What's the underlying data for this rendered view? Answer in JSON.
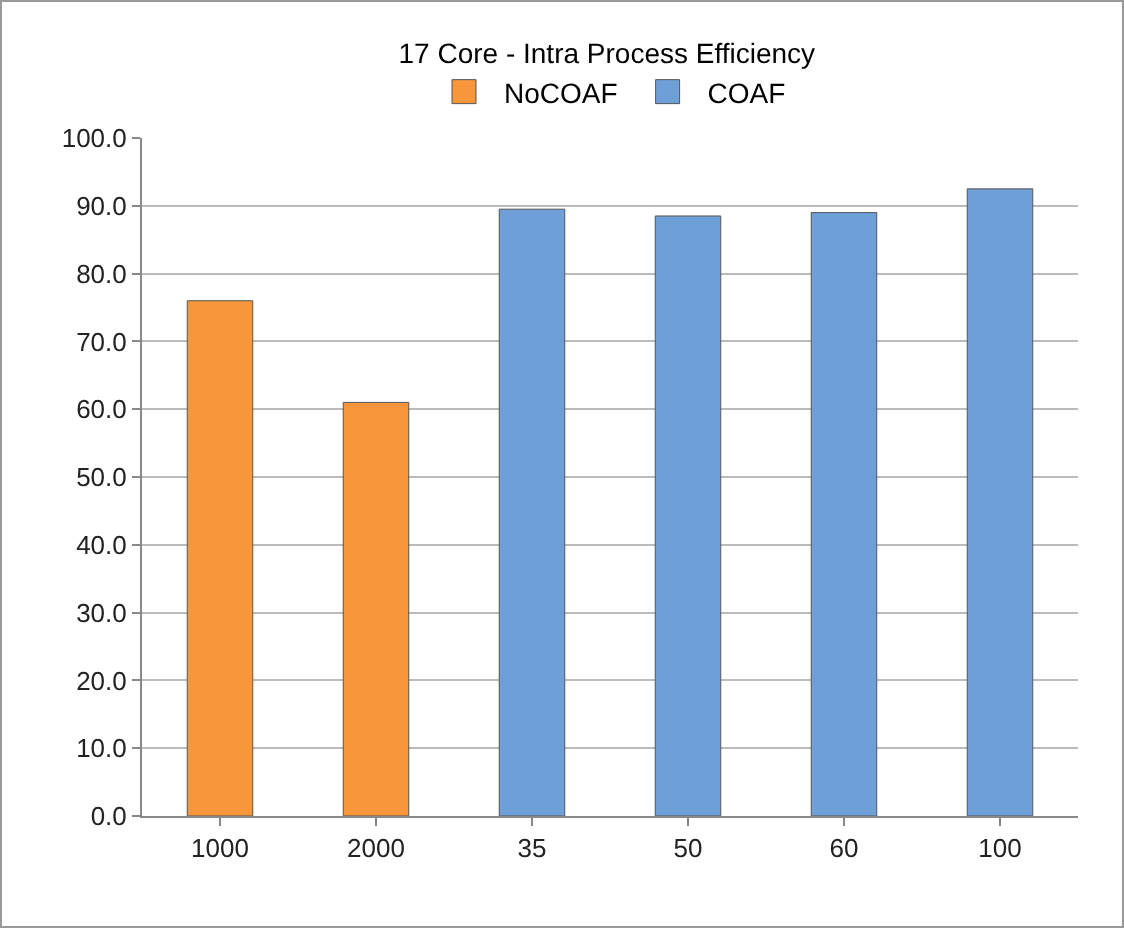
{
  "chart_data": {
    "type": "bar",
    "title": "17 Core - Intra Process Efficiency",
    "categories": [
      "1000",
      "2000",
      "35",
      "50",
      "60",
      "100"
    ],
    "series": [
      {
        "name": "NoCOAF",
        "color": "#f7963a",
        "values": [
          76,
          61,
          null,
          null,
          null,
          null
        ]
      },
      {
        "name": "COAF",
        "color": "#6f9fd8",
        "values": [
          null,
          null,
          89.5,
          88.5,
          89,
          92.5
        ]
      }
    ],
    "ylim": [
      0,
      100
    ],
    "yticks": [
      {
        "value": 0,
        "label": "0.0"
      },
      {
        "value": 10,
        "label": "10.0"
      },
      {
        "value": 20,
        "label": "20.0"
      },
      {
        "value": 30,
        "label": "30.0"
      },
      {
        "value": 40,
        "label": "40.0"
      },
      {
        "value": 50,
        "label": "50.0"
      },
      {
        "value": 60,
        "label": "60.0"
      },
      {
        "value": 70,
        "label": "70.0"
      },
      {
        "value": 80,
        "label": "80.0"
      },
      {
        "value": 90,
        "label": "90.0"
      },
      {
        "value": 100,
        "label": "100.0"
      }
    ],
    "grid": "y",
    "legend": "top"
  }
}
